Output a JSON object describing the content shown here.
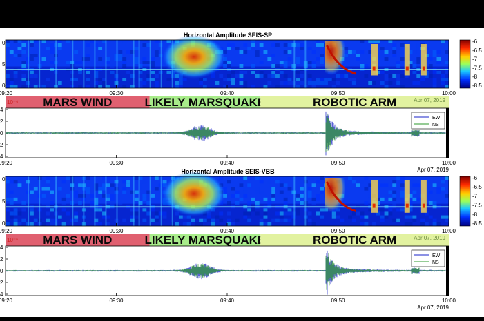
{
  "colors": {
    "mars_wind": "#e06070",
    "likely_marsquake": "#a8ec8a",
    "robotic_arm": "#e2f2a0",
    "ew": "#1a23c8",
    "ns": "#2e9a2e",
    "colormap": [
      "#7f0000",
      "#ff2a00",
      "#ffd000",
      "#9cff5a",
      "#1ac8ff",
      "#0030ff",
      "#00007f"
    ]
  },
  "chart_data": [
    {
      "type": "heatmap",
      "title": "Horizontal Amplitude SEIS-SP",
      "x_ticks": [
        "09:20",
        "09:30",
        "09:40",
        "09:50",
        "10:00"
      ],
      "x_range": [
        "09:20",
        "10:00"
      ],
      "y_tick_partial": [
        "0",
        "5",
        "0"
      ],
      "colorbar_ticks": [
        "-6",
        "-6.5",
        "-7",
        "-7.5",
        "-8",
        "-8.5"
      ],
      "colorbar_range": [
        -8.5,
        -6
      ],
      "date": "Apr 07, 2019"
    },
    {
      "type": "line",
      "annotation_bands": [
        {
          "label": "MARS WIND",
          "start": "09:20",
          "end": "09:33"
        },
        {
          "label": "LIKELY MARSQUAKE",
          "start": "09:33",
          "end": "09:43"
        },
        {
          "label": "ROBOTIC ARM",
          "start": "09:43",
          "end": "10:00"
        }
      ],
      "scale_label": "10⁻⁶",
      "y_ticks": [
        "4",
        "2",
        "0",
        "2",
        "4"
      ],
      "x_ticks": [
        "09:20",
        "09:30",
        "09:40",
        "09:50",
        "10:00"
      ],
      "series": [
        {
          "name": "EW"
        },
        {
          "name": "NS"
        }
      ],
      "date": "Apr 07, 2019"
    },
    {
      "type": "heatmap",
      "title": "Horizontal Amplitude SEIS-VBB",
      "x_ticks": [
        "09:20",
        "09:30",
        "09:40",
        "09:50",
        "10:00"
      ],
      "x_range": [
        "09:20",
        "10:00"
      ],
      "y_tick_partial": [
        "0",
        "5",
        "0"
      ],
      "colorbar_ticks": [
        "-6",
        "-6.5",
        "-7",
        "-7.5",
        "-8",
        "-8.5"
      ],
      "colorbar_range": [
        -8.5,
        -6
      ],
      "date": "Apr 07, 2019"
    },
    {
      "type": "line",
      "annotation_bands": [
        {
          "label": "MARS WIND",
          "start": "09:20",
          "end": "09:33"
        },
        {
          "label": "LIKELY MARSQUAKE",
          "start": "09:33",
          "end": "09:43"
        },
        {
          "label": "ROBOTIC ARM",
          "start": "09:43",
          "end": "10:00"
        }
      ],
      "scale_label": "10⁻⁶",
      "y_ticks": [
        "4",
        "2",
        "0",
        "2",
        "4"
      ],
      "x_ticks": [
        "09:20",
        "09:30",
        "09:40",
        "09:50",
        "10:00"
      ],
      "series": [
        {
          "name": "EW"
        },
        {
          "name": "NS"
        }
      ],
      "date": "Apr 07, 2019"
    }
  ]
}
